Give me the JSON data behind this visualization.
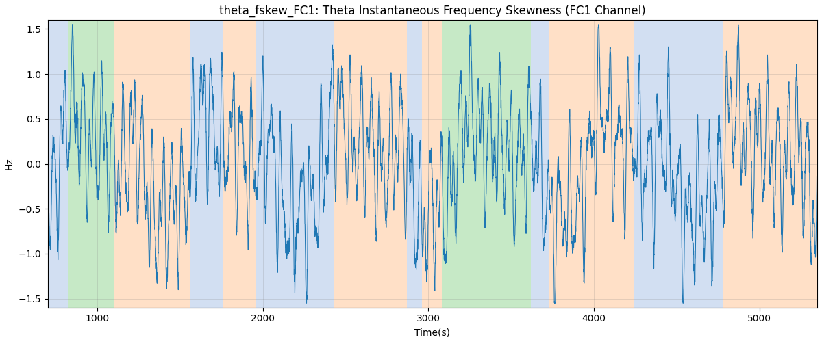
{
  "title": "theta_fskew_FC1: Theta Instantaneous Frequency Skewness (FC1 Channel)",
  "xlabel": "Time(s)",
  "ylabel": "Hz",
  "ylim": [
    -1.6,
    1.6
  ],
  "xlim": [
    700,
    5350
  ],
  "yticks": [
    -1.5,
    -1.0,
    -0.5,
    0.0,
    0.5,
    1.0,
    1.5
  ],
  "xticks": [
    1000,
    2000,
    3000,
    4000,
    5000
  ],
  "line_color": "#1f77b4",
  "bg_regions": [
    {
      "start": 700,
      "end": 820,
      "color": "#aec6e8",
      "alpha": 0.55
    },
    {
      "start": 820,
      "end": 1100,
      "color": "#98d898",
      "alpha": 0.55
    },
    {
      "start": 1100,
      "end": 1560,
      "color": "#ffc89a",
      "alpha": 0.55
    },
    {
      "start": 1560,
      "end": 1760,
      "color": "#aec6e8",
      "alpha": 0.55
    },
    {
      "start": 1760,
      "end": 1960,
      "color": "#ffc89a",
      "alpha": 0.55
    },
    {
      "start": 1960,
      "end": 2430,
      "color": "#aec6e8",
      "alpha": 0.55
    },
    {
      "start": 2430,
      "end": 2870,
      "color": "#ffc89a",
      "alpha": 0.55
    },
    {
      "start": 2870,
      "end": 2960,
      "color": "#aec6e8",
      "alpha": 0.55
    },
    {
      "start": 2960,
      "end": 3080,
      "color": "#ffc89a",
      "alpha": 0.55
    },
    {
      "start": 3080,
      "end": 3620,
      "color": "#98d898",
      "alpha": 0.55
    },
    {
      "start": 3620,
      "end": 3730,
      "color": "#aec6e8",
      "alpha": 0.55
    },
    {
      "start": 3730,
      "end": 4240,
      "color": "#ffc89a",
      "alpha": 0.55
    },
    {
      "start": 4240,
      "end": 4780,
      "color": "#aec6e8",
      "alpha": 0.55
    },
    {
      "start": 4780,
      "end": 5350,
      "color": "#ffc89a",
      "alpha": 0.55
    }
  ],
  "seed": 42,
  "figsize": [
    12,
    5
  ],
  "dpi": 100,
  "title_fontsize": 12,
  "label_fontsize": 10,
  "line_width": 0.8
}
